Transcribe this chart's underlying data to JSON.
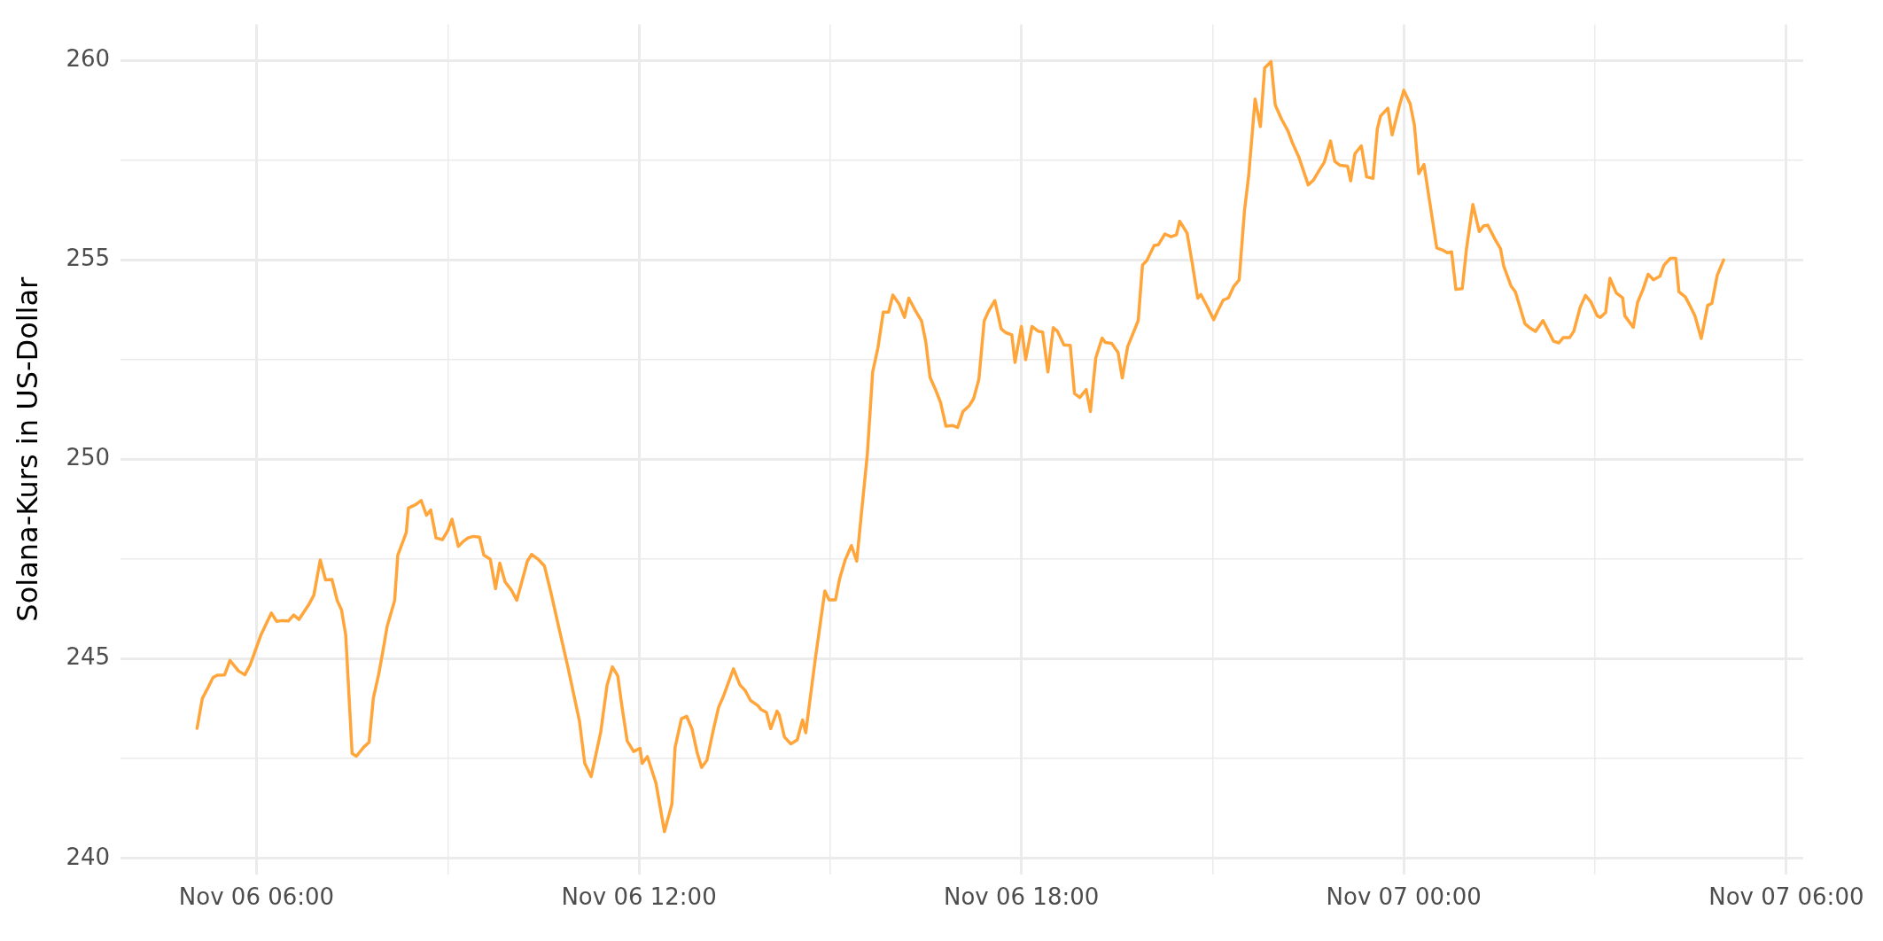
{
  "chart_data": {
    "type": "line",
    "ylabel": "Solana-Kurs in US-Dollar",
    "x": [
      "--11-06T05:04",
      "--11-06T05:09",
      "--11-06T05:14",
      "--11-06T05:19",
      "--11-06T05:23",
      "--11-06T05:30",
      "--11-06T05:35",
      "--11-06T05:43",
      "--11-06T05:49",
      "--11-06T05:54",
      "--11-06T06:04",
      "--11-06T06:14",
      "--11-06T06:19",
      "--11-06T06:24",
      "--11-06T06:30",
      "--11-06T06:35",
      "--11-06T06:40",
      "--11-06T06:49",
      "--11-06T06:54",
      "--11-06T07:00",
      "--11-06T07:05",
      "--11-06T07:11",
      "--11-06T07:16",
      "--11-06T07:20",
      "--11-06T07:24",
      "--11-06T07:30",
      "--11-06T07:34",
      "--11-06T07:41",
      "--11-06T07:46",
      "--11-06T07:50",
      "--11-06T07:55",
      "--11-06T07:59",
      "--11-06T08:03",
      "--11-06T08:10",
      "--11-06T08:13",
      "--11-06T08:21",
      "--11-06T08:23",
      "--11-06T08:30",
      "--11-06T08:35",
      "--11-06T08:40",
      "--11-06T08:44",
      "--11-06T08:49",
      "--11-06T08:55",
      "--11-06T09:00",
      "--11-06T09:04",
      "--11-06T09:10",
      "--11-06T09:14",
      "--11-06T09:19",
      "--11-06T09:24",
      "--11-06T09:30",
      "--11-06T09:34",
      "--11-06T09:40",
      "--11-06T09:45",
      "--11-06T09:49",
      "--11-06T09:54",
      "--11-06T10:00",
      "--11-06T10:05",
      "--11-06T10:15",
      "--11-06T10:19",
      "--11-06T10:25",
      "--11-06T10:31",
      "--11-06T10:37",
      "--11-06T10:45",
      "--11-06T10:53",
      "--11-06T11:04",
      "--11-06T11:09",
      "--11-06T11:15",
      "--11-06T11:24",
      "--11-06T11:30",
      "--11-06T11:35",
      "--11-06T11:40",
      "--11-06T11:44",
      "--11-06T11:49",
      "--11-06T11:55",
      "--11-06T12:01",
      "--11-06T12:03",
      "--11-06T12:08",
      "--11-06T12:16",
      "--11-06T12:24",
      "--11-06T12:31",
      "--11-06T12:34",
      "--11-06T12:40",
      "--11-06T12:45",
      "--11-06T12:50",
      "--11-06T12:55",
      "--11-06T12:59",
      "--11-06T13:04",
      "--11-06T13:10",
      "--11-06T13:15",
      "--11-06T13:19",
      "--11-06T13:29",
      "--11-06T13:35",
      "--11-06T13:40",
      "--11-06T13:45",
      "--11-06T13:52",
      "--11-06T13:55",
      "--11-06T14:00",
      "--11-06T14:04",
      "--11-06T14:10",
      "--11-06T14:12",
      "--11-06T14:17",
      "--11-06T14:23",
      "--11-06T14:29",
      "--11-06T14:34",
      "--11-06T14:37",
      "--11-06T14:46",
      "--11-06T14:55",
      "--11-06T14:59",
      "--11-06T15:05",
      "--11-06T15:09",
      "--11-06T15:14",
      "--11-06T15:20",
      "--11-06T15:25",
      "--11-06T15:30",
      "--11-06T15:35",
      "--11-06T15:40",
      "--11-06T15:45",
      "--11-06T15:50",
      "--11-06T15:55",
      "--11-06T15:59",
      "--11-06T16:05",
      "--11-06T16:10",
      "--11-06T16:14",
      "--11-06T16:20",
      "--11-06T16:26",
      "--11-06T16:30",
      "--11-06T16:34",
      "--11-06T16:39",
      "--11-06T16:44",
      "--11-06T16:49",
      "--11-06T16:55",
      "--11-06T17:00",
      "--11-06T17:05",
      "--11-06T17:11",
      "--11-06T17:15",
      "--11-06T17:20",
      "--11-06T17:25",
      "--11-06T17:29",
      "--11-06T17:35",
      "--11-06T17:41",
      "--11-06T17:45",
      "--11-06T17:51",
      "--11-06T17:54",
      "--11-06T18:00",
      "--11-06T18:04",
      "--11-06T18:10",
      "--11-06T18:16",
      "--11-06T18:20",
      "--11-06T18:25",
      "--11-06T18:30",
      "--11-06T18:34",
      "--11-06T18:40",
      "--11-06T18:46",
      "--11-06T18:50",
      "--11-06T18:55",
      "--11-06T19:01",
      "--11-06T19:05",
      "--11-06T19:10",
      "--11-06T19:16",
      "--11-06T19:19",
      "--11-06T19:25",
      "--11-06T19:31",
      "--11-06T19:35",
      "--11-06T19:40",
      "--11-06T19:45",
      "--11-06T19:50",
      "--11-06T19:54",
      "--11-06T19:58",
      "--11-06T20:05",
      "--11-06T20:09",
      "--11-06T20:15",
      "--11-06T20:21",
      "--11-06T20:26",
      "--11-06T20:29",
      "--11-06T20:36",
      "--11-06T20:41",
      "--11-06T20:46",
      "--11-06T20:49",
      "--11-06T20:55",
      "--11-06T21:01",
      "--11-06T21:05",
      "--11-06T21:10",
      "--11-06T21:15",
      "--11-06T21:20",
      "--11-06T21:25",
      "--11-06T21:30",
      "--11-06T21:34",
      "--11-06T21:40",
      "--11-06T21:45",
      "--11-06T21:49",
      "--11-06T21:55",
      "--11-06T21:59",
      "--11-06T22:05",
      "--11-06T22:11",
      "--11-06T22:15",
      "--11-06T22:21",
      "--11-06T22:30",
      "--11-06T22:35",
      "--11-06T22:40",
      "--11-06T22:45",
      "--11-06T22:51",
      "--11-06T22:55",
      "--11-06T23:00",
      "--11-06T23:07",
      "--11-06T23:10",
      "--11-06T23:14",
      "--11-06T23:20",
      "--11-06T23:25",
      "--11-06T23:31",
      "--11-06T23:35",
      "--11-06T23:38",
      "--11-06T23:45",
      "--11-06T23:49",
      "--11-06T23:56",
      "--11-07T00:00",
      "--11-07T00:06",
      "--11-07T00:10",
      "--11-07T00:14",
      "--11-07T00:19",
      "--11-07T00:31",
      "--11-07T00:37",
      "--11-07T00:41",
      "--11-07T00:45",
      "--11-07T00:49",
      "--11-07T00:55",
      "--11-07T00:59",
      "--11-07T01:05",
      "--11-07T01:11",
      "--11-07T01:15",
      "--11-07T01:19",
      "--11-07T01:26",
      "--11-07T01:31",
      "--11-07T01:34",
      "--11-07T01:41",
      "--11-07T01:45",
      "--11-07T01:54",
      "--11-07T01:58",
      "--11-07T02:04",
      "--11-07T02:11",
      "--11-07T02:21",
      "--11-07T02:26",
      "--11-07T02:30",
      "--11-07T02:36",
      "--11-07T02:40",
      "--11-07T02:46",
      "--11-07T02:51",
      "--11-07T02:56",
      "--11-07T03:02",
      "--11-07T03:05",
      "--11-07T03:10",
      "--11-07T03:14",
      "--11-07T03:20",
      "--11-07T03:26",
      "--11-07T03:28",
      "--11-07T03:36",
      "--11-07T03:40",
      "--11-07T03:45",
      "--11-07T03:50",
      "--11-07T03:55",
      "--11-07T04:01",
      "--11-07T04:05",
      "--11-07T04:11",
      "--11-07T04:16",
      "--11-07T04:19",
      "--11-07T04:25",
      "--11-07T04:29",
      "--11-07T04:34",
      "--11-07T04:40",
      "--11-07T04:46",
      "--11-07T04:50",
      "--11-07T04:55",
      "--11-07T05:01"
    ],
    "series": [
      {
        "color": "#ffa53a",
        "values": [
          243.26,
          244.01,
          244.26,
          244.53,
          244.59,
          244.6,
          244.96,
          244.7,
          244.6,
          244.85,
          245.59,
          246.15,
          245.94,
          245.96,
          245.95,
          246.1,
          245.99,
          246.35,
          246.6,
          247.48,
          246.98,
          246.99,
          246.46,
          246.23,
          245.59,
          242.63,
          242.56,
          242.79,
          242.91,
          244.02,
          244.61,
          245.2,
          245.82,
          246.46,
          247.6,
          248.17,
          248.78,
          248.87,
          248.97,
          248.6,
          248.73,
          248.03,
          247.99,
          248.21,
          248.5,
          247.82,
          247.93,
          248.03,
          248.07,
          248.05,
          247.6,
          247.5,
          246.76,
          247.4,
          246.93,
          246.72,
          246.47,
          247.45,
          247.62,
          247.5,
          247.33,
          246.68,
          245.74,
          244.81,
          243.44,
          242.38,
          242.05,
          243.16,
          244.34,
          244.8,
          244.58,
          243.81,
          242.94,
          242.68,
          242.76,
          242.38,
          242.55,
          241.89,
          240.67,
          241.36,
          242.78,
          243.5,
          243.56,
          243.24,
          242.63,
          242.28,
          242.46,
          243.22,
          243.79,
          244.03,
          244.75,
          244.35,
          244.21,
          243.96,
          243.83,
          243.73,
          243.66,
          243.25,
          243.69,
          243.6,
          243.04,
          242.87,
          242.97,
          243.47,
          243.15,
          245.0,
          246.7,
          246.48,
          246.48,
          247.02,
          247.47,
          247.84,
          247.45,
          248.8,
          250.13,
          252.19,
          252.8,
          253.69,
          253.69,
          254.12,
          253.89,
          253.56,
          254.04,
          253.74,
          253.47,
          252.95,
          252.06,
          251.76,
          251.42,
          250.83,
          250.85,
          250.8,
          251.2,
          251.35,
          251.52,
          252.01,
          253.47,
          253.71,
          253.98,
          253.27,
          253.18,
          253.12,
          252.43,
          253.33,
          252.5,
          253.33,
          253.21,
          253.19,
          252.19,
          253.3,
          253.21,
          252.87,
          252.86,
          251.65,
          251.55,
          251.75,
          251.2,
          252.54,
          253.04,
          252.93,
          252.91,
          252.68,
          252.04,
          252.82,
          253.15,
          253.48,
          254.87,
          254.98,
          255.36,
          255.38,
          255.65,
          255.58,
          255.63,
          255.97,
          255.67,
          254.89,
          254.04,
          254.13,
          253.83,
          253.5,
          253.73,
          253.99,
          254.05,
          254.34,
          254.5,
          256.23,
          257.12,
          259.03,
          258.34,
          259.81,
          259.97,
          258.88,
          258.52,
          258.23,
          257.94,
          257.59,
          256.88,
          257.0,
          257.23,
          257.44,
          257.98,
          257.47,
          257.37,
          257.35,
          256.98,
          257.66,
          257.86,
          257.08,
          257.04,
          258.27,
          258.6,
          258.8,
          258.13,
          258.88,
          259.25,
          258.91,
          258.37,
          257.16,
          257.39,
          255.3,
          255.24,
          255.18,
          255.2,
          254.26,
          254.28,
          255.28,
          256.39,
          255.71,
          255.85,
          255.87,
          255.51,
          255.28,
          254.85,
          254.34,
          254.2,
          253.4,
          253.31,
          253.21,
          253.48,
          252.96,
          252.92,
          253.05,
          253.05,
          253.21,
          253.81,
          254.11,
          253.95,
          253.6,
          253.56,
          253.68,
          254.54,
          254.17,
          254.05,
          253.6,
          253.31,
          253.93,
          254.25,
          254.64,
          254.5,
          254.59,
          254.87,
          255.04,
          255.04,
          254.2,
          254.07,
          253.87,
          253.6,
          253.03,
          253.86,
          253.91,
          254.61,
          255.0
        ]
      }
    ],
    "xlim": [
      "--11-06T03:52",
      "--11-07T06:16"
    ],
    "xticks": [
      {
        "value": "--11-06T06:00",
        "label": "Nov 06 06:00"
      },
      {
        "value": "--11-06T09:00",
        "label": null
      },
      {
        "value": "--11-06T12:00",
        "label": "Nov 06 12:00"
      },
      {
        "value": "--11-06T15:00",
        "label": null
      },
      {
        "value": "--11-06T18:00",
        "label": "Nov 06 18:00"
      },
      {
        "value": "--11-06T21:00",
        "label": null
      },
      {
        "value": "--11-07T00:00",
        "label": "Nov 07 00:00"
      },
      {
        "value": "--11-07T03:00",
        "label": null
      },
      {
        "value": "--11-07T06:00",
        "label": "Nov 07 06:00"
      }
    ],
    "ylim": [
      239.6,
      260.9
    ],
    "yticks": [
      240,
      {
        "value": 242.5,
        "label": null
      },
      245,
      {
        "value": 247.5,
        "label": null
      },
      250,
      {
        "value": 252.5,
        "label": null
      },
      255,
      {
        "value": 257.5,
        "label": null
      },
      260
    ],
    "grid": true,
    "legend": false,
    "marker": "none",
    "line_style": "solid"
  }
}
